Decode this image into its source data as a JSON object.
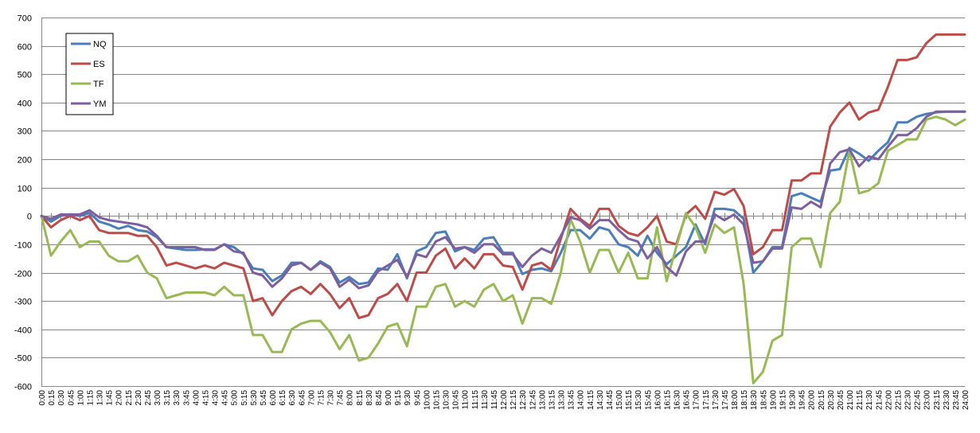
{
  "chart_data": {
    "type": "line",
    "title": "",
    "xlabel": "",
    "ylabel": "",
    "ylim": [
      -600,
      700
    ],
    "yticks": [
      -600,
      -500,
      -400,
      -300,
      -200,
      -100,
      0,
      100,
      200,
      300,
      400,
      500,
      600,
      700
    ],
    "grid": true,
    "legend_position": "top-left",
    "x": [
      "0:00",
      "0:15",
      "0:30",
      "0:45",
      "1:00",
      "1:15",
      "1:30",
      "1:45",
      "2:00",
      "2:15",
      "2:30",
      "2:45",
      "3:00",
      "3:15",
      "3:30",
      "3:45",
      "4:00",
      "4:15",
      "4:30",
      "4:45",
      "5:00",
      "5:15",
      "5:30",
      "5:45",
      "6:00",
      "6:15",
      "6:30",
      "6:45",
      "7:00",
      "7:15",
      "7:30",
      "7:45",
      "8:00",
      "8:15",
      "8:30",
      "8:45",
      "9:00",
      "9:15",
      "9:30",
      "9:45",
      "10:00",
      "10:15",
      "10:30",
      "10:45",
      "11:00",
      "11:15",
      "11:30",
      "11:45",
      "12:00",
      "12:15",
      "12:30",
      "12:45",
      "13:00",
      "13:15",
      "13:30",
      "13:45",
      "14:00",
      "14:15",
      "14:30",
      "14:45",
      "15:00",
      "15:15",
      "15:30",
      "15:45",
      "16:00",
      "16:15",
      "16:30",
      "16:45",
      "17:00",
      "17:15",
      "17:30",
      "17:45",
      "18:00",
      "18:15",
      "18:30",
      "18:45",
      "19:00",
      "19:15",
      "19:30",
      "19:45",
      "20:00",
      "20:15",
      "20:30",
      "20:45",
      "21:00",
      "21:15",
      "21:30",
      "21:45",
      "22:00",
      "22:15",
      "22:30",
      "22:45",
      "23:00",
      "23:15",
      "23:30",
      "23:45",
      "24:00"
    ],
    "series": [
      {
        "name": "NQ",
        "color": "#4a7ebb",
        "values": [
          0,
          -20,
          0,
          5,
          0,
          10,
          -20,
          -30,
          -45,
          -35,
          -50,
          -55,
          -75,
          -110,
          -115,
          -120,
          -120,
          -118,
          -118,
          -100,
          -110,
          -135,
          -185,
          -190,
          -230,
          -210,
          -165,
          -165,
          -190,
          -160,
          -180,
          -235,
          -215,
          -240,
          -235,
          -185,
          -190,
          -135,
          -220,
          -125,
          -110,
          -60,
          -55,
          -125,
          -110,
          -120,
          -80,
          -75,
          -130,
          -130,
          -205,
          -190,
          -185,
          -195,
          -130,
          -50,
          -50,
          -80,
          -40,
          -50,
          -100,
          -110,
          -140,
          -70,
          -130,
          -170,
          -140,
          -110,
          -30,
          -100,
          25,
          25,
          20,
          -10,
          -200,
          -160,
          -110,
          -110,
          70,
          80,
          65,
          50,
          160,
          165,
          240,
          220,
          195,
          230,
          260,
          330,
          330,
          350,
          360,
          365,
          368,
          368,
          368
        ]
      },
      {
        "name": "ES",
        "color": "#be4b48",
        "values": [
          0,
          -40,
          -15,
          0,
          -15,
          0,
          -50,
          -60,
          -60,
          -60,
          -70,
          -70,
          -110,
          -175,
          -165,
          -175,
          -185,
          -175,
          -185,
          -165,
          -175,
          -185,
          -300,
          -290,
          -350,
          -300,
          -265,
          -250,
          -275,
          -240,
          -275,
          -325,
          -290,
          -360,
          -350,
          -290,
          -275,
          -240,
          -300,
          -200,
          -200,
          -140,
          -115,
          -185,
          -150,
          -185,
          -135,
          -135,
          -175,
          -180,
          -260,
          -175,
          -165,
          -190,
          -80,
          25,
          -10,
          -35,
          25,
          25,
          -35,
          -60,
          -70,
          -40,
          0,
          -90,
          -100,
          5,
          35,
          -10,
          85,
          75,
          95,
          35,
          -135,
          -110,
          -50,
          -50,
          125,
          125,
          150,
          150,
          315,
          365,
          400,
          340,
          365,
          375,
          455,
          550,
          550,
          560,
          610,
          640,
          640,
          640,
          640
        ]
      },
      {
        "name": "TF",
        "color": "#98b954",
        "values": [
          0,
          -140,
          -90,
          -50,
          -110,
          -90,
          -90,
          -140,
          -160,
          -160,
          -140,
          -200,
          -220,
          -290,
          -280,
          -270,
          -270,
          -270,
          -280,
          -250,
          -280,
          -280,
          -420,
          -420,
          -480,
          -480,
          -400,
          -380,
          -370,
          -370,
          -410,
          -470,
          -420,
          -510,
          -500,
          -450,
          -390,
          -380,
          -460,
          -320,
          -320,
          -250,
          -240,
          -320,
          -300,
          -320,
          -260,
          -240,
          -300,
          -280,
          -380,
          -290,
          -290,
          -310,
          -200,
          -10,
          -90,
          -200,
          -120,
          -120,
          -200,
          -130,
          -220,
          -220,
          -40,
          -230,
          -110,
          10,
          -40,
          -130,
          -30,
          -60,
          -40,
          -240,
          -590,
          -550,
          -440,
          -420,
          -110,
          -80,
          -80,
          -180,
          10,
          50,
          230,
          80,
          90,
          115,
          230,
          250,
          270,
          270,
          340,
          350,
          340,
          320,
          340
        ]
      },
      {
        "name": "YM",
        "color": "#7d5fa0",
        "values": [
          0,
          -10,
          5,
          5,
          5,
          20,
          -5,
          -15,
          -20,
          -25,
          -30,
          -40,
          -70,
          -110,
          -110,
          -110,
          -110,
          -120,
          -120,
          -100,
          -125,
          -130,
          -200,
          -210,
          -250,
          -220,
          -175,
          -165,
          -190,
          -165,
          -185,
          -250,
          -225,
          -255,
          -245,
          -195,
          -175,
          -155,
          -215,
          -135,
          -145,
          -90,
          -75,
          -115,
          -110,
          -130,
          -100,
          -100,
          -135,
          -135,
          -180,
          -140,
          -115,
          -130,
          -70,
          -5,
          -15,
          -45,
          -15,
          -15,
          -50,
          -80,
          -90,
          -150,
          -110,
          -180,
          -210,
          -125,
          -90,
          -90,
          5,
          -15,
          5,
          -30,
          -165,
          -160,
          -115,
          -115,
          30,
          25,
          50,
          30,
          185,
          225,
          235,
          175,
          210,
          200,
          245,
          285,
          285,
          310,
          350,
          368,
          368,
          368,
          368
        ]
      }
    ]
  }
}
